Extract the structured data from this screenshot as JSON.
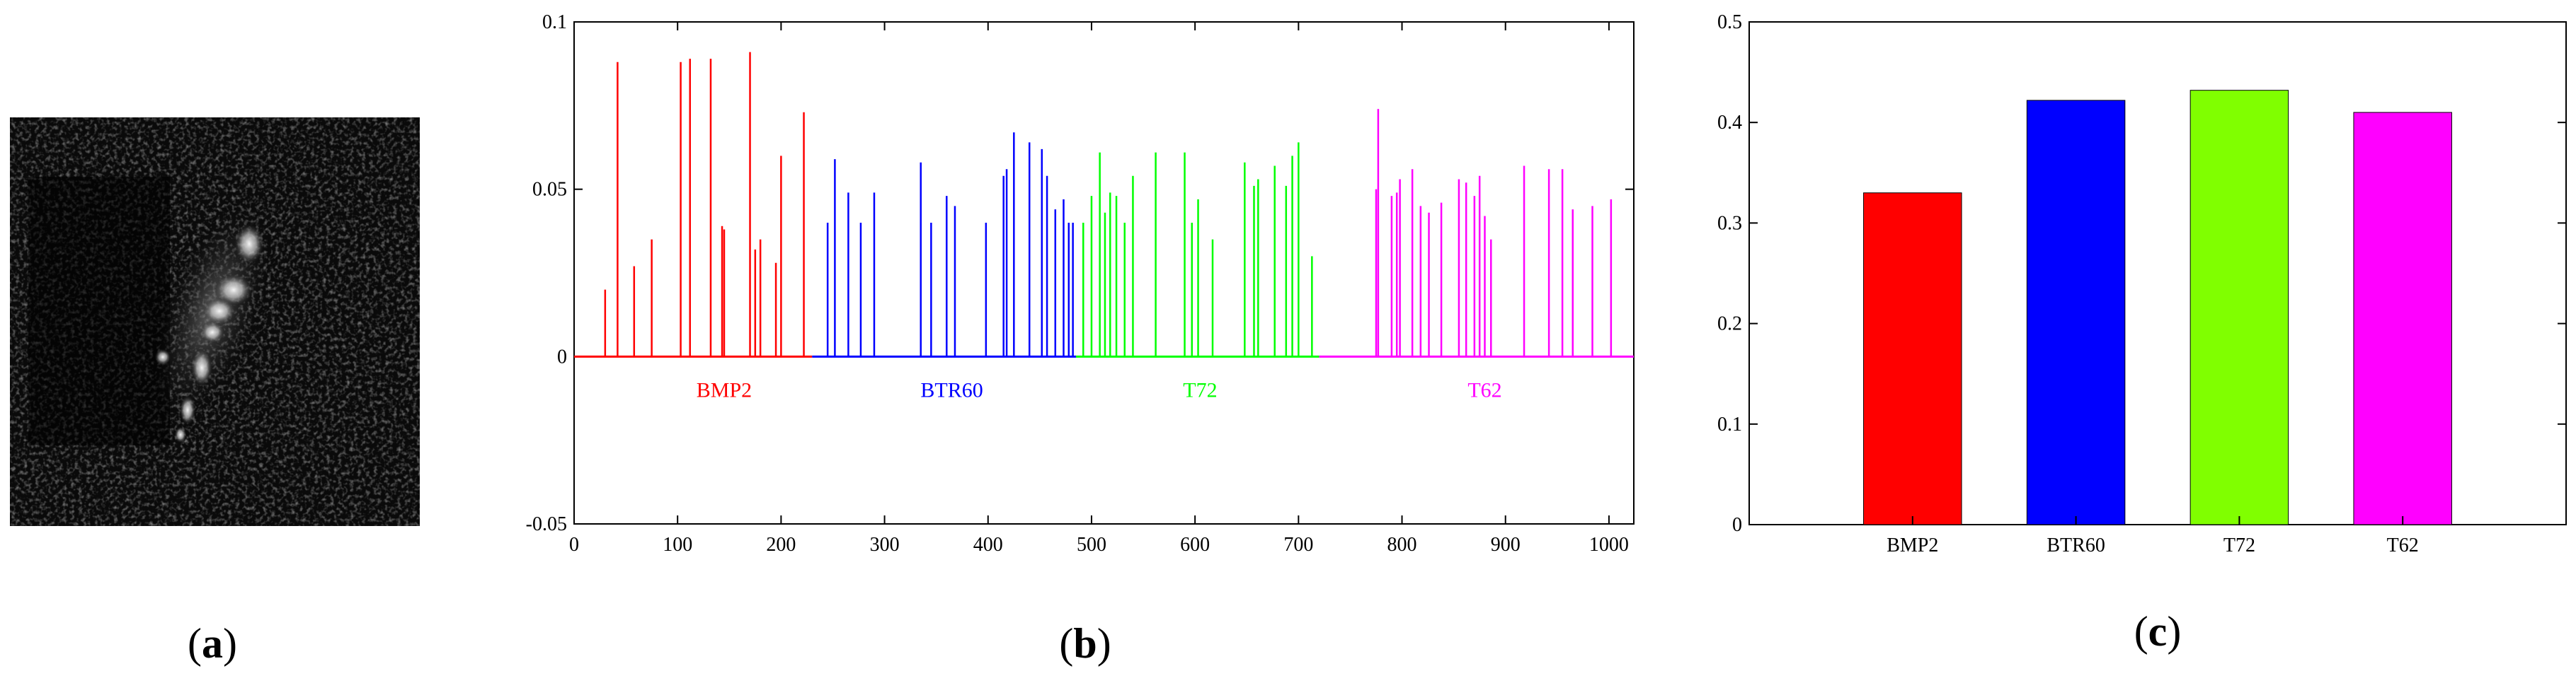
{
  "panels": {
    "a": {
      "caption_open": "(",
      "caption_letter": "a",
      "caption_close": ")",
      "kind": "grayscale SAR target chip"
    },
    "b": {
      "caption_open": "(",
      "caption_letter": "b",
      "caption_close": ")"
    },
    "c": {
      "caption_open": "(",
      "caption_letter": "c",
      "caption_close": ")"
    }
  },
  "colors": {
    "BMP2": "#ff0000",
    "BTR60": "#0000ff",
    "T72": "#00ff00",
    "T62": "#ff00ff",
    "T72_bar": "#80ff00"
  },
  "chart_data": [
    {
      "id": "b",
      "type": "stem",
      "title": "",
      "xlabel": "",
      "ylabel": "",
      "xlim": [
        0,
        1024
      ],
      "ylim": [
        -0.05,
        0.1
      ],
      "xticks": [
        0,
        100,
        200,
        300,
        400,
        500,
        600,
        700,
        800,
        900,
        1000
      ],
      "yticks": [
        -0.05,
        0,
        0.05,
        0.1
      ],
      "ytick_labels": [
        "-0.05",
        "0",
        "0.05",
        "0.1"
      ],
      "groups": [
        {
          "name": "BMP2",
          "label": "BMP2",
          "color": "#ff0000",
          "range": [
            0,
            230
          ],
          "label_x": 145,
          "stems": [
            [
              30,
              0.02
            ],
            [
              42,
              0.088
            ],
            [
              58,
              0.027
            ],
            [
              75,
              0.035
            ],
            [
              103,
              0.088
            ],
            [
              112,
              0.089
            ],
            [
              132,
              0.089
            ],
            [
              143,
              0.039
            ],
            [
              145,
              0.038
            ],
            [
              170,
              0.091
            ],
            [
              175,
              0.032
            ],
            [
              180,
              0.035
            ],
            [
              195,
              0.028
            ],
            [
              200,
              0.06
            ],
            [
              222,
              0.073
            ]
          ]
        },
        {
          "name": "BTR60",
          "label": "BTR60",
          "color": "#0000ff",
          "range": [
            230,
            485
          ],
          "label_x": 365,
          "stems": [
            [
              245,
              0.04
            ],
            [
              252,
              0.059
            ],
            [
              265,
              0.049
            ],
            [
              277,
              0.04
            ],
            [
              290,
              0.049
            ],
            [
              335,
              0.058
            ],
            [
              345,
              0.04
            ],
            [
              360,
              0.048
            ],
            [
              368,
              0.045
            ],
            [
              398,
              0.04
            ],
            [
              415,
              0.054
            ],
            [
              418,
              0.056
            ],
            [
              425,
              0.067
            ],
            [
              440,
              0.064
            ],
            [
              452,
              0.062
            ],
            [
              457,
              0.054
            ],
            [
              465,
              0.044
            ],
            [
              473,
              0.047
            ],
            [
              478,
              0.04
            ],
            [
              482,
              0.04
            ]
          ]
        },
        {
          "name": "T72",
          "label": "T72",
          "color": "#00ff00",
          "range": [
            485,
            720
          ],
          "label_x": 605,
          "stems": [
            [
              492,
              0.04
            ],
            [
              500,
              0.048
            ],
            [
              508,
              0.061
            ],
            [
              513,
              0.043
            ],
            [
              518,
              0.049
            ],
            [
              524,
              0.048
            ],
            [
              532,
              0.04
            ],
            [
              540,
              0.054
            ],
            [
              562,
              0.061
            ],
            [
              590,
              0.061
            ],
            [
              597,
              0.04
            ],
            [
              603,
              0.047
            ],
            [
              617,
              0.035
            ],
            [
              648,
              0.058
            ],
            [
              657,
              0.051
            ],
            [
              661,
              0.053
            ],
            [
              677,
              0.057
            ],
            [
              688,
              0.051
            ],
            [
              694,
              0.06
            ],
            [
              700,
              0.064
            ],
            [
              713,
              0.03
            ]
          ]
        },
        {
          "name": "T62",
          "label": "T62",
          "color": "#ff00ff",
          "range": [
            720,
            1024
          ],
          "label_x": 880,
          "stems": [
            [
              775,
              0.05
            ],
            [
              777,
              0.074
            ],
            [
              790,
              0.048
            ],
            [
              795,
              0.049
            ],
            [
              798,
              0.053
            ],
            [
              810,
              0.056
            ],
            [
              818,
              0.045
            ],
            [
              826,
              0.043
            ],
            [
              838,
              0.046
            ],
            [
              855,
              0.053
            ],
            [
              862,
              0.052
            ],
            [
              870,
              0.048
            ],
            [
              875,
              0.054
            ],
            [
              880,
              0.042
            ],
            [
              886,
              0.035
            ],
            [
              918,
              0.057
            ],
            [
              942,
              0.056
            ],
            [
              955,
              0.056
            ],
            [
              965,
              0.044
            ],
            [
              984,
              0.045
            ],
            [
              1002,
              0.047
            ]
          ]
        }
      ]
    },
    {
      "id": "c",
      "type": "bar",
      "title": "",
      "xlabel": "",
      "ylabel": "",
      "categories": [
        "BMP2",
        "BTR60",
        "T72",
        "T62"
      ],
      "values": [
        0.33,
        0.422,
        0.432,
        0.41
      ],
      "bar_colors": [
        "#ff0000",
        "#0000ff",
        "#80ff00",
        "#ff00ff"
      ],
      "ylim": [
        0,
        0.5
      ],
      "yticks": [
        0,
        0.1,
        0.2,
        0.3,
        0.4,
        0.5
      ],
      "ytick_labels": [
        "0",
        "0.1",
        "0.2",
        "0.3",
        "0.4",
        "0.5"
      ]
    }
  ]
}
